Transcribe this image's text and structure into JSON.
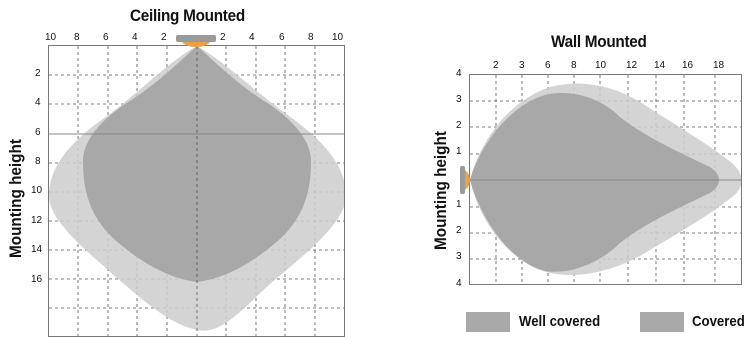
{
  "ceiling": {
    "title": "Ceiling Mounted",
    "ylabel": "Mounting height",
    "x_ticks": [
      "10",
      "8",
      "6",
      "4",
      "2",
      "2",
      "4",
      "6",
      "8",
      "10"
    ],
    "y_ticks": [
      "2",
      "4",
      "6",
      "8",
      "10",
      "12",
      "14",
      "16"
    ],
    "sensor_color": "#e8a04a"
  },
  "wall": {
    "title": "Wall Mounted",
    "ylabel": "Mounting height",
    "x_ticks": [
      "2",
      "3",
      "6",
      "8",
      "10",
      "12",
      "14",
      "16",
      "18"
    ],
    "y_ticks": [
      "4",
      "3",
      "2",
      "1",
      "1",
      "2",
      "3",
      "4"
    ],
    "sensor_color": "#e8a04a"
  },
  "legend": {
    "well_covered": "Well covered",
    "covered": "Covered",
    "well_color": "#a9a9a9",
    "covered_color": "#a9a9a9"
  },
  "colors": {
    "covered_zone": "#cdcdcd",
    "well_zone": "#a3a3a3",
    "grid": "#555555",
    "axis_line": "#888888"
  }
}
